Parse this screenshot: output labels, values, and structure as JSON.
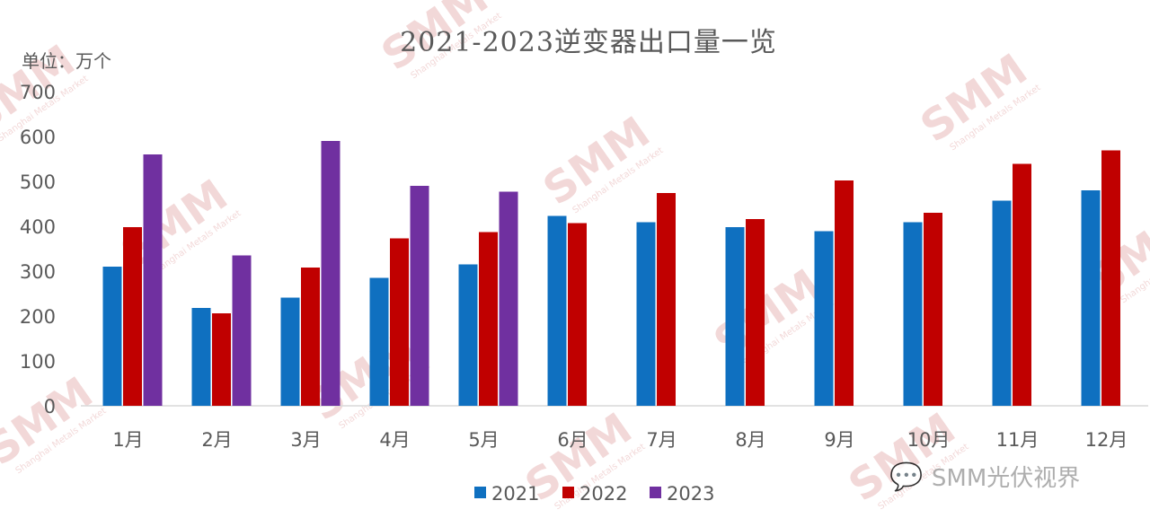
{
  "chart_data": {
    "type": "bar",
    "title": "2021-2023逆变器出口量一览",
    "unit_label": "单位：万个",
    "categories": [
      "1月",
      "2月",
      "3月",
      "4月",
      "5月",
      "6月",
      "7月",
      "8月",
      "9月",
      "10月",
      "11月",
      "12月"
    ],
    "series": [
      {
        "name": "2021",
        "color": "#0f70c0",
        "values": [
          310,
          218,
          241,
          285,
          315,
          423,
          409,
          398,
          389,
          409,
          457,
          480
        ]
      },
      {
        "name": "2022",
        "color": "#c00000",
        "values": [
          398,
          206,
          308,
          373,
          387,
          407,
          474,
          416,
          502,
          430,
          539,
          569
        ]
      },
      {
        "name": "2023",
        "color": "#7030a0",
        "values": [
          560,
          335,
          590,
          490,
          477,
          null,
          null,
          null,
          null,
          null,
          null,
          null
        ]
      }
    ],
    "ylim": [
      0,
      700
    ],
    "yticks": [
      0,
      100,
      200,
      300,
      400,
      500,
      600,
      700
    ],
    "grid": false,
    "legend": "bottom"
  },
  "watermark": {
    "brand": "SMM",
    "subtext": "Shanghai Metals Market"
  },
  "wechat": {
    "icon": "wechat-icon",
    "text": "SMM光伏视界"
  }
}
